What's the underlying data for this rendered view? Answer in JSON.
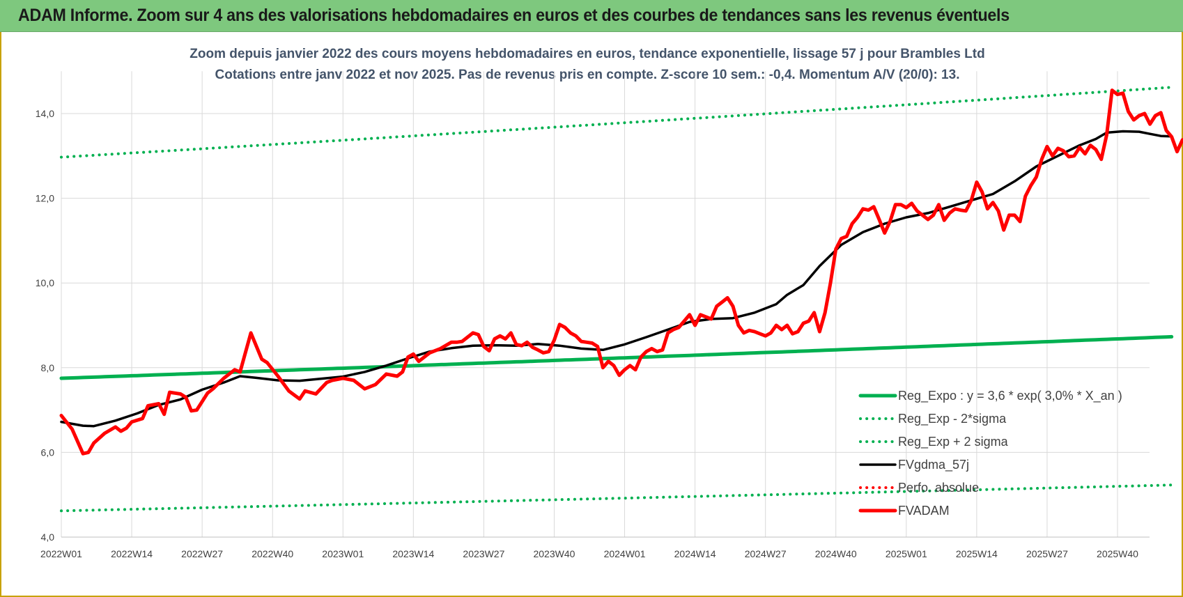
{
  "banner": {
    "title": "ADAM Informe. Zoom sur 4 ans des valorisations hebdomadaires en euros et des courbes de tendances sans les revenus éventuels"
  },
  "colors": {
    "banner_bg": "#7ec87e",
    "regression": "#00b050",
    "fvgdma": "#000000",
    "fvadam": "#ff0000",
    "perfo": "#ff0000"
  },
  "chart_data": {
    "type": "line",
    "title_line1": "Zoom depuis janvier 2022 des cours moyens hebdomadaires en euros, tendance exponentielle, lissage 57 j pour Brambles Ltd",
    "title_line2": "Cotations entre janv 2022 et nov 2025. Pas de revenus pris en compte. Z-score 10 sem.: -0,4. Momentum A/V (20/0): 13.",
    "ylim": [
      4.0,
      15.0
    ],
    "y_ticks": [
      "4,0",
      "6,0",
      "8,0",
      "10,0",
      "12,0",
      "14,0"
    ],
    "y_tick_values": [
      4,
      6,
      8,
      10,
      12,
      14
    ],
    "x_ticks": [
      "2022W01",
      "2022W14",
      "2022W27",
      "2022W40",
      "2023W01",
      "2023W14",
      "2023W27",
      "2023W40",
      "2024W01",
      "2024W14",
      "2024W27",
      "2024W40",
      "2025W01",
      "2025W14",
      "2025W27",
      "2025W40"
    ],
    "x_tick_index": [
      0,
      13,
      26,
      39,
      52,
      65,
      78,
      91,
      104,
      117,
      130,
      143,
      156,
      169,
      182,
      195
    ],
    "weeks_count": 205,
    "grid": true,
    "legend_position": "bottom-right",
    "series": [
      {
        "name": "Reg_Expo : y = 3,6 * exp( 3,0% *  X_an )",
        "style": "solid-thick",
        "color": "#00b050",
        "start": 7.75,
        "end": 8.73
      },
      {
        "name": "Reg_Exp - 2*sigma",
        "style": "dotted",
        "color": "#00b050",
        "start": 4.62,
        "end": 5.23
      },
      {
        "name": "Reg_Exp + 2 sigma",
        "style": "dotted",
        "color": "#00b050",
        "start": 12.97,
        "end": 14.62
      },
      {
        "name": "FVgdma_57j",
        "style": "solid",
        "color": "#000000",
        "points": [
          [
            0,
            6.72
          ],
          [
            4,
            6.63
          ],
          [
            6,
            6.62
          ],
          [
            10,
            6.75
          ],
          [
            14,
            6.92
          ],
          [
            18,
            7.12
          ],
          [
            22,
            7.25
          ],
          [
            26,
            7.48
          ],
          [
            30,
            7.65
          ],
          [
            33,
            7.8
          ],
          [
            36,
            7.76
          ],
          [
            40,
            7.7
          ],
          [
            44,
            7.69
          ],
          [
            48,
            7.74
          ],
          [
            52,
            7.79
          ],
          [
            56,
            7.9
          ],
          [
            60,
            8.05
          ],
          [
            64,
            8.22
          ],
          [
            68,
            8.38
          ],
          [
            72,
            8.46
          ],
          [
            76,
            8.52
          ],
          [
            80,
            8.53
          ],
          [
            84,
            8.52
          ],
          [
            88,
            8.56
          ],
          [
            92,
            8.52
          ],
          [
            96,
            8.45
          ],
          [
            100,
            8.42
          ],
          [
            104,
            8.55
          ],
          [
            108,
            8.72
          ],
          [
            112,
            8.9
          ],
          [
            116,
            9.08
          ],
          [
            120,
            9.15
          ],
          [
            124,
            9.17
          ],
          [
            128,
            9.3
          ],
          [
            132,
            9.5
          ],
          [
            134,
            9.72
          ],
          [
            137,
            9.95
          ],
          [
            140,
            10.4
          ],
          [
            144,
            10.9
          ],
          [
            148,
            11.2
          ],
          [
            152,
            11.4
          ],
          [
            156,
            11.55
          ],
          [
            160,
            11.65
          ],
          [
            164,
            11.8
          ],
          [
            168,
            11.95
          ],
          [
            172,
            12.1
          ],
          [
            176,
            12.4
          ],
          [
            180,
            12.75
          ],
          [
            184,
            13.0
          ],
          [
            188,
            13.25
          ],
          [
            191,
            13.4
          ],
          [
            193,
            13.55
          ],
          [
            196,
            13.58
          ],
          [
            199,
            13.57
          ],
          [
            201,
            13.52
          ],
          [
            203,
            13.47
          ],
          [
            205,
            13.46
          ]
        ]
      },
      {
        "name": "Perfo. absolue",
        "style": "dotted",
        "color": "#ff0000",
        "hidden_in_plot": true
      },
      {
        "name": "FVADAM",
        "style": "solid-thick",
        "color": "#ff0000",
        "points": [
          [
            0,
            6.87
          ],
          [
            2,
            6.55
          ],
          [
            4,
            5.97
          ],
          [
            5,
            6.0
          ],
          [
            6,
            6.22
          ],
          [
            8,
            6.45
          ],
          [
            10,
            6.6
          ],
          [
            11,
            6.5
          ],
          [
            12,
            6.57
          ],
          [
            13,
            6.72
          ],
          [
            15,
            6.8
          ],
          [
            16,
            7.1
          ],
          [
            18,
            7.15
          ],
          [
            19,
            6.9
          ],
          [
            20,
            7.42
          ],
          [
            22,
            7.38
          ],
          [
            23,
            7.3
          ],
          [
            24,
            6.98
          ],
          [
            25,
            7.0
          ],
          [
            27,
            7.4
          ],
          [
            28,
            7.5
          ],
          [
            30,
            7.75
          ],
          [
            32,
            7.95
          ],
          [
            33,
            7.9
          ],
          [
            35,
            8.82
          ],
          [
            37,
            8.2
          ],
          [
            38,
            8.12
          ],
          [
            40,
            7.8
          ],
          [
            42,
            7.45
          ],
          [
            44,
            7.26
          ],
          [
            45,
            7.45
          ],
          [
            47,
            7.38
          ],
          [
            49,
            7.65
          ],
          [
            50,
            7.7
          ],
          [
            52,
            7.75
          ],
          [
            54,
            7.7
          ],
          [
            56,
            7.5
          ],
          [
            58,
            7.6
          ],
          [
            60,
            7.85
          ],
          [
            62,
            7.8
          ],
          [
            63,
            7.9
          ],
          [
            64,
            8.25
          ],
          [
            65,
            8.32
          ],
          [
            66,
            8.15
          ],
          [
            68,
            8.35
          ],
          [
            70,
            8.45
          ],
          [
            72,
            8.6
          ],
          [
            73,
            8.6
          ],
          [
            74,
            8.62
          ],
          [
            76,
            8.82
          ],
          [
            77,
            8.78
          ],
          [
            78,
            8.5
          ],
          [
            79,
            8.4
          ],
          [
            80,
            8.68
          ],
          [
            81,
            8.75
          ],
          [
            82,
            8.68
          ],
          [
            83,
            8.82
          ],
          [
            84,
            8.55
          ],
          [
            85,
            8.52
          ],
          [
            86,
            8.6
          ],
          [
            87,
            8.48
          ],
          [
            88,
            8.42
          ],
          [
            89,
            8.35
          ],
          [
            90,
            8.38
          ],
          [
            91,
            8.65
          ],
          [
            92,
            9.02
          ],
          [
            93,
            8.95
          ],
          [
            94,
            8.82
          ],
          [
            95,
            8.75
          ],
          [
            96,
            8.62
          ],
          [
            97,
            8.6
          ],
          [
            98,
            8.58
          ],
          [
            99,
            8.5
          ],
          [
            100,
            8.0
          ],
          [
            101,
            8.15
          ],
          [
            102,
            8.05
          ],
          [
            103,
            7.82
          ],
          [
            104,
            7.95
          ],
          [
            105,
            8.05
          ],
          [
            106,
            7.95
          ],
          [
            107,
            8.25
          ],
          [
            108,
            8.38
          ],
          [
            109,
            8.45
          ],
          [
            110,
            8.38
          ],
          [
            111,
            8.42
          ],
          [
            112,
            8.82
          ],
          [
            113,
            8.9
          ],
          [
            114,
            8.95
          ],
          [
            115,
            9.1
          ],
          [
            116,
            9.25
          ],
          [
            117,
            9.0
          ],
          [
            118,
            9.25
          ],
          [
            119,
            9.2
          ],
          [
            120,
            9.15
          ],
          [
            121,
            9.45
          ],
          [
            122,
            9.55
          ],
          [
            123,
            9.65
          ],
          [
            124,
            9.45
          ],
          [
            125,
            9.0
          ],
          [
            126,
            8.82
          ],
          [
            127,
            8.88
          ],
          [
            128,
            8.85
          ],
          [
            129,
            8.8
          ],
          [
            130,
            8.75
          ],
          [
            131,
            8.82
          ],
          [
            132,
            9.0
          ],
          [
            133,
            8.9
          ],
          [
            134,
            9.0
          ],
          [
            135,
            8.8
          ],
          [
            136,
            8.85
          ],
          [
            137,
            9.05
          ],
          [
            138,
            9.1
          ],
          [
            139,
            9.3
          ],
          [
            140,
            8.85
          ],
          [
            141,
            9.3
          ],
          [
            142,
            10.0
          ],
          [
            143,
            10.8
          ],
          [
            144,
            11.05
          ],
          [
            145,
            11.1
          ],
          [
            146,
            11.4
          ],
          [
            147,
            11.55
          ],
          [
            148,
            11.75
          ],
          [
            149,
            11.72
          ],
          [
            150,
            11.8
          ],
          [
            151,
            11.5
          ],
          [
            152,
            11.18
          ],
          [
            153,
            11.45
          ],
          [
            154,
            11.85
          ],
          [
            155,
            11.85
          ],
          [
            156,
            11.78
          ],
          [
            157,
            11.88
          ],
          [
            158,
            11.7
          ],
          [
            159,
            11.6
          ],
          [
            160,
            11.5
          ],
          [
            161,
            11.6
          ],
          [
            162,
            11.85
          ],
          [
            163,
            11.48
          ],
          [
            164,
            11.65
          ],
          [
            165,
            11.75
          ],
          [
            166,
            11.72
          ],
          [
            167,
            11.7
          ],
          [
            168,
            11.95
          ],
          [
            169,
            12.38
          ],
          [
            170,
            12.15
          ],
          [
            171,
            11.75
          ],
          [
            172,
            11.9
          ],
          [
            173,
            11.7
          ],
          [
            174,
            11.25
          ],
          [
            175,
            11.6
          ],
          [
            176,
            11.6
          ],
          [
            177,
            11.45
          ],
          [
            178,
            12.05
          ],
          [
            179,
            12.3
          ],
          [
            180,
            12.5
          ],
          [
            181,
            12.92
          ],
          [
            182,
            13.22
          ],
          [
            183,
            13.0
          ],
          [
            184,
            13.18
          ],
          [
            185,
            13.12
          ],
          [
            186,
            12.98
          ],
          [
            187,
            13.0
          ],
          [
            188,
            13.2
          ],
          [
            189,
            13.05
          ],
          [
            190,
            13.25
          ],
          [
            191,
            13.15
          ],
          [
            192,
            12.92
          ],
          [
            193,
            13.5
          ],
          [
            194,
            14.55
          ],
          [
            195,
            14.45
          ],
          [
            196,
            14.48
          ],
          [
            197,
            14.05
          ],
          [
            198,
            13.85
          ],
          [
            199,
            13.95
          ],
          [
            200,
            14.0
          ],
          [
            201,
            13.75
          ],
          [
            202,
            13.95
          ],
          [
            203,
            14.02
          ],
          [
            204,
            13.6
          ],
          [
            205,
            13.45
          ],
          [
            206,
            13.1
          ],
          [
            207,
            13.38
          ]
        ]
      }
    ]
  }
}
